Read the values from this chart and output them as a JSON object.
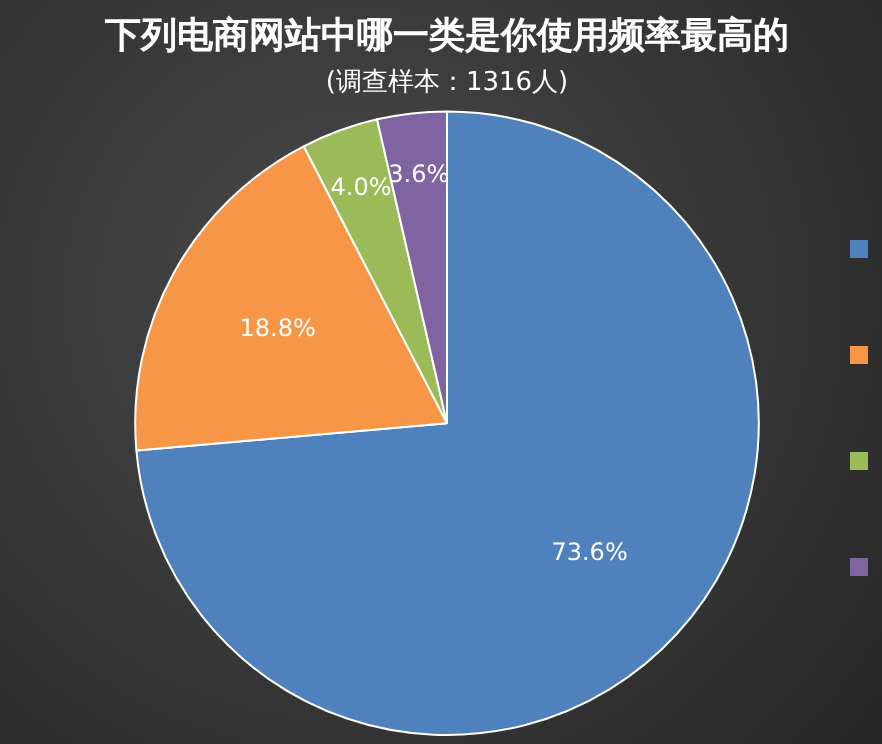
{
  "chart_data": {
    "type": "pie",
    "title": "下列电商网站中哪一类是你使用频率最高的",
    "subtitle": "(调查样本：1316人)",
    "categories": [
      null,
      null,
      null,
      null
    ],
    "values": [
      73.6,
      18.8,
      4.0,
      3.6
    ],
    "colors": [
      "#4f81bd",
      "#f79646",
      "#9bbb59",
      "#8064a2"
    ],
    "value_labels": [
      "73.6%",
      "18.8%",
      "4.0%",
      "3.6%"
    ]
  }
}
